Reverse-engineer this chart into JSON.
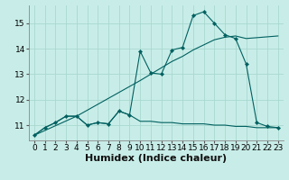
{
  "xlabel": "Humidex (Indice chaleur)",
  "bg_color": "#c8ede8",
  "grid_color": "#a8d8d0",
  "line_color": "#006060",
  "xlim": [
    -0.5,
    23.5
  ],
  "ylim": [
    10.4,
    15.7
  ],
  "yticks": [
    11,
    12,
    13,
    14,
    15
  ],
  "xticks": [
    0,
    1,
    2,
    3,
    4,
    5,
    6,
    7,
    8,
    9,
    10,
    11,
    12,
    13,
    14,
    15,
    16,
    17,
    18,
    19,
    20,
    21,
    22,
    23
  ],
  "series1_x": [
    0,
    1,
    2,
    3,
    4,
    5,
    6,
    7,
    8,
    9,
    10,
    11,
    12,
    13,
    14,
    15,
    16,
    17,
    18,
    19,
    20,
    21,
    22,
    23
  ],
  "series1_y": [
    10.6,
    10.9,
    11.1,
    11.35,
    11.35,
    11.0,
    11.1,
    11.05,
    11.55,
    11.4,
    13.9,
    13.05,
    13.0,
    13.95,
    14.05,
    15.3,
    15.45,
    15.0,
    14.55,
    14.4,
    13.4,
    11.1,
    10.95,
    10.9
  ],
  "series2_x": [
    0,
    4,
    10,
    11,
    12,
    13,
    14,
    15,
    16,
    17,
    18,
    19,
    20,
    23
  ],
  "series2_y": [
    10.6,
    11.35,
    12.75,
    13.0,
    13.25,
    13.5,
    13.7,
    13.95,
    14.15,
    14.35,
    14.45,
    14.5,
    14.4,
    14.5
  ],
  "series3_x": [
    0,
    1,
    2,
    3,
    4,
    5,
    6,
    7,
    8,
    9,
    10,
    11,
    12,
    13,
    14,
    15,
    16,
    17,
    18,
    19,
    20,
    21,
    22,
    23
  ],
  "series3_y": [
    10.6,
    10.9,
    11.1,
    11.35,
    11.35,
    11.0,
    11.1,
    11.05,
    11.55,
    11.4,
    11.15,
    11.15,
    11.1,
    11.1,
    11.05,
    11.05,
    11.05,
    11.0,
    11.0,
    10.95,
    10.95,
    10.9,
    10.9,
    10.9
  ],
  "xlabel_fontsize": 8,
  "tick_fontsize": 6.5
}
